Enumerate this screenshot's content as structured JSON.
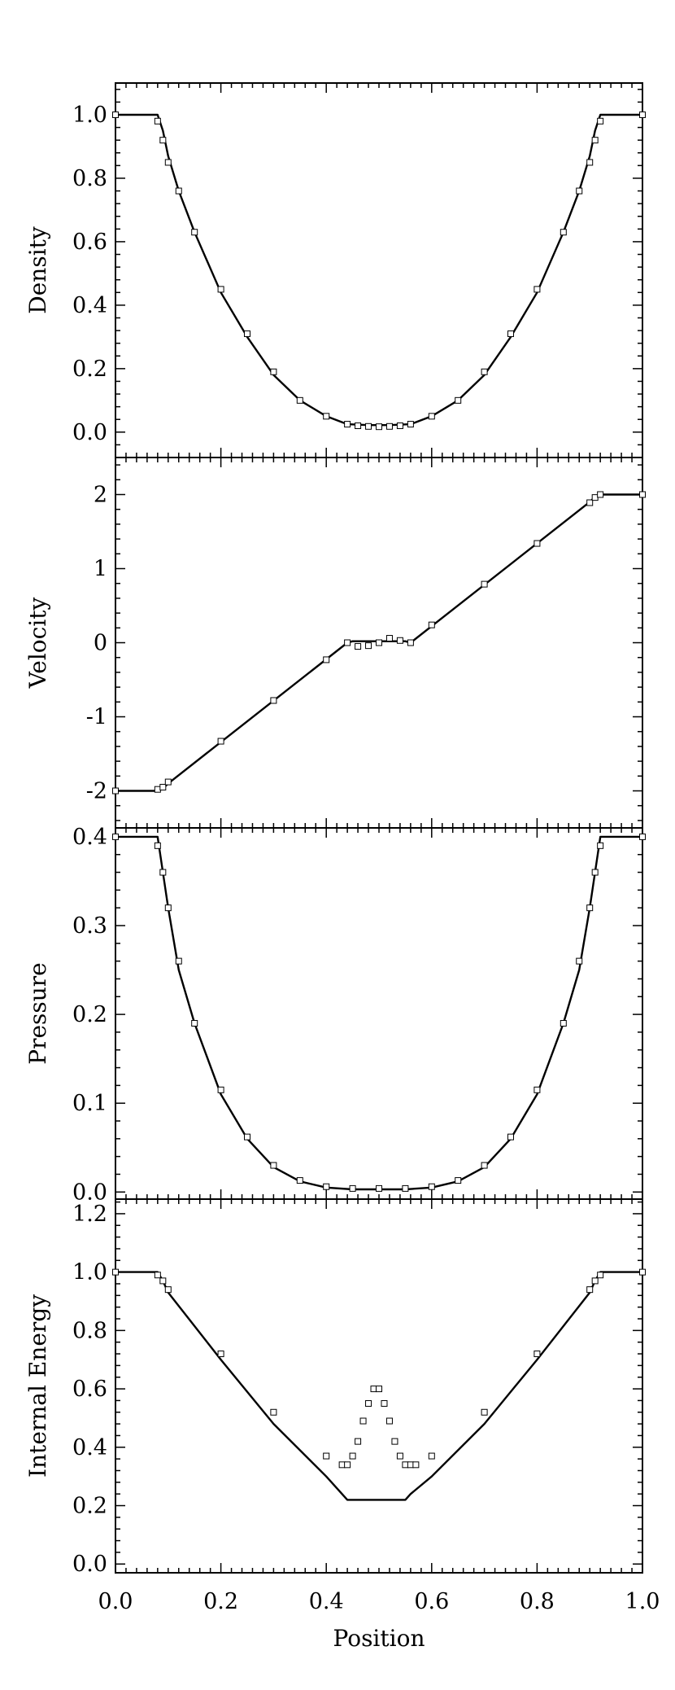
{
  "chart_data": [
    {
      "type": "line",
      "ylabel": "Density",
      "xlim": [
        0.0,
        1.0
      ],
      "ylim": [
        -0.08,
        1.1
      ],
      "yticks": [
        "0.0",
        "0.2",
        "0.4",
        "0.6",
        "0.8",
        "1.0"
      ],
      "series": [
        {
          "style": "line",
          "x": [
            0.0,
            0.08,
            0.09,
            0.1,
            0.12,
            0.15,
            0.2,
            0.25,
            0.3,
            0.35,
            0.4,
            0.44,
            0.48,
            0.52,
            0.56,
            0.6,
            0.65,
            0.7,
            0.75,
            0.8,
            0.85,
            0.88,
            0.9,
            0.91,
            0.92,
            1.0
          ],
          "y": [
            1.0,
            1.0,
            0.95,
            0.87,
            0.76,
            0.63,
            0.44,
            0.3,
            0.18,
            0.1,
            0.05,
            0.025,
            0.022,
            0.022,
            0.025,
            0.05,
            0.1,
            0.18,
            0.3,
            0.44,
            0.63,
            0.76,
            0.87,
            0.95,
            1.0,
            1.0
          ]
        },
        {
          "style": "markers",
          "x": [
            0.0,
            0.08,
            0.09,
            0.1,
            0.12,
            0.15,
            0.2,
            0.25,
            0.3,
            0.35,
            0.4,
            0.44,
            0.46,
            0.48,
            0.5,
            0.52,
            0.54,
            0.56,
            0.6,
            0.65,
            0.7,
            0.75,
            0.8,
            0.85,
            0.88,
            0.9,
            0.91,
            0.92,
            1.0
          ],
          "y": [
            1.0,
            0.98,
            0.92,
            0.85,
            0.76,
            0.63,
            0.45,
            0.31,
            0.19,
            0.1,
            0.05,
            0.025,
            0.02,
            0.018,
            0.017,
            0.018,
            0.02,
            0.025,
            0.05,
            0.1,
            0.19,
            0.31,
            0.45,
            0.63,
            0.76,
            0.85,
            0.92,
            0.98,
            1.0
          ]
        }
      ]
    },
    {
      "type": "line",
      "ylabel": "Velocity",
      "xlim": [
        0.0,
        1.0
      ],
      "ylim": [
        -2.5,
        2.5
      ],
      "yticks": [
        "-2",
        "-1",
        "0",
        "1",
        "2"
      ],
      "series": [
        {
          "style": "line",
          "x": [
            0.0,
            0.08,
            0.09,
            0.1,
            0.44,
            0.45,
            0.5,
            0.55,
            0.56,
            0.9,
            0.91,
            0.92,
            1.0
          ],
          "y": [
            -2.0,
            -2.0,
            -1.97,
            -1.9,
            0.0,
            0.02,
            0.02,
            0.02,
            0.0,
            1.9,
            1.97,
            2.0,
            2.0
          ]
        },
        {
          "style": "markers",
          "x": [
            0.0,
            0.08,
            0.09,
            0.1,
            0.2,
            0.3,
            0.4,
            0.44,
            0.46,
            0.48,
            0.5,
            0.52,
            0.54,
            0.56,
            0.6,
            0.7,
            0.8,
            0.9,
            0.91,
            0.92,
            1.0
          ],
          "y": [
            -2.0,
            -1.98,
            -1.95,
            -1.88,
            -1.33,
            -0.78,
            -0.23,
            0.0,
            -0.05,
            -0.04,
            0.0,
            0.06,
            0.03,
            0.0,
            0.24,
            0.79,
            1.34,
            1.89,
            1.96,
            2.0,
            2.0
          ]
        }
      ]
    },
    {
      "type": "line",
      "ylabel": "Pressure",
      "xlim": [
        0.0,
        1.0
      ],
      "ylim": [
        -0.008,
        0.41
      ],
      "yticks": [
        "0.0",
        "0.1",
        "0.2",
        "0.3",
        "0.4"
      ],
      "series": [
        {
          "style": "line",
          "x": [
            0.0,
            0.08,
            0.09,
            0.1,
            0.12,
            0.15,
            0.2,
            0.25,
            0.3,
            0.35,
            0.4,
            0.45,
            0.5,
            0.55,
            0.6,
            0.65,
            0.7,
            0.75,
            0.8,
            0.85,
            0.88,
            0.9,
            0.91,
            0.92,
            1.0
          ],
          "y": [
            0.4,
            0.4,
            0.36,
            0.32,
            0.25,
            0.19,
            0.11,
            0.06,
            0.028,
            0.012,
            0.005,
            0.003,
            0.003,
            0.003,
            0.005,
            0.012,
            0.028,
            0.06,
            0.11,
            0.19,
            0.25,
            0.32,
            0.36,
            0.4,
            0.4
          ]
        },
        {
          "style": "markers",
          "x": [
            0.0,
            0.08,
            0.09,
            0.1,
            0.12,
            0.15,
            0.2,
            0.25,
            0.3,
            0.35,
            0.4,
            0.45,
            0.5,
            0.55,
            0.6,
            0.65,
            0.7,
            0.75,
            0.8,
            0.85,
            0.88,
            0.9,
            0.91,
            0.92,
            1.0
          ],
          "y": [
            0.4,
            0.39,
            0.36,
            0.32,
            0.26,
            0.19,
            0.115,
            0.062,
            0.03,
            0.013,
            0.006,
            0.004,
            0.004,
            0.004,
            0.006,
            0.013,
            0.03,
            0.062,
            0.115,
            0.19,
            0.26,
            0.32,
            0.36,
            0.39,
            0.4
          ]
        }
      ]
    },
    {
      "type": "line",
      "ylabel": "Internal Energy",
      "xlim": [
        0.0,
        1.0
      ],
      "ylim": [
        -0.03,
        1.25
      ],
      "yticks": [
        "0.0",
        "0.2",
        "0.4",
        "0.6",
        "0.8",
        "1.0",
        "1.2"
      ],
      "series": [
        {
          "style": "line",
          "x": [
            0.0,
            0.08,
            0.09,
            0.1,
            0.2,
            0.3,
            0.4,
            0.44,
            0.5,
            0.55,
            0.56,
            0.6,
            0.7,
            0.8,
            0.9,
            0.91,
            0.92,
            1.0
          ],
          "y": [
            1.0,
            1.0,
            0.97,
            0.93,
            0.7,
            0.48,
            0.3,
            0.22,
            0.22,
            0.22,
            0.24,
            0.3,
            0.48,
            0.7,
            0.93,
            0.97,
            1.0,
            1.0
          ]
        },
        {
          "style": "markers",
          "x": [
            0.0,
            0.08,
            0.09,
            0.1,
            0.2,
            0.3,
            0.4,
            0.43,
            0.44,
            0.45,
            0.46,
            0.47,
            0.48,
            0.49,
            0.5,
            0.51,
            0.52,
            0.53,
            0.54,
            0.55,
            0.56,
            0.57,
            0.6,
            0.7,
            0.8,
            0.9,
            0.91,
            0.92,
            1.0
          ],
          "y": [
            1.0,
            0.99,
            0.97,
            0.94,
            0.72,
            0.52,
            0.37,
            0.34,
            0.34,
            0.37,
            0.42,
            0.49,
            0.55,
            0.6,
            0.6,
            0.55,
            0.49,
            0.42,
            0.37,
            0.34,
            0.34,
            0.34,
            0.37,
            0.52,
            0.72,
            0.94,
            0.97,
            0.99,
            1.0
          ]
        }
      ]
    }
  ],
  "xaxis": {
    "label": "Position",
    "ticks": [
      "0.0",
      "0.2",
      "0.4",
      "0.6",
      "0.8",
      "1.0"
    ]
  }
}
